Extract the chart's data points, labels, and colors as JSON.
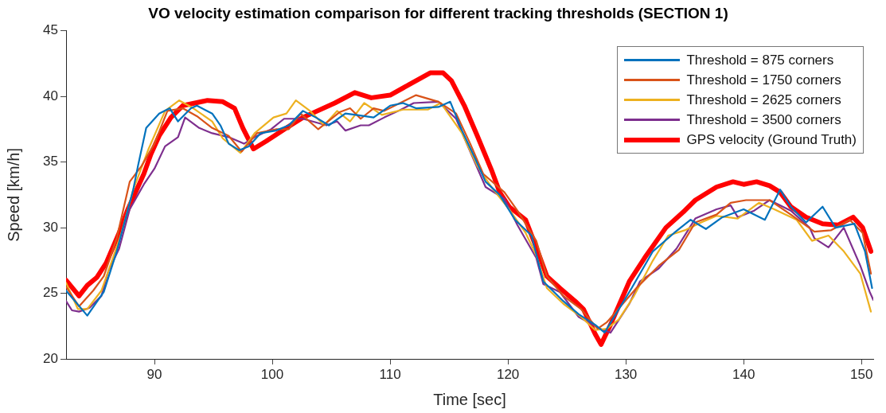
{
  "chart_data": {
    "type": "line",
    "title": "VO velocity estimation comparison for different tracking thresholds (SECTION 1)",
    "xlabel": "Time [sec]",
    "ylabel": "Speed [km/h]",
    "xlim": [
      82.5,
      151
    ],
    "xticks": [
      90,
      100,
      110,
      120,
      130,
      140,
      150
    ],
    "ylim": [
      20,
      45
    ],
    "yticks": [
      20,
      25,
      30,
      35,
      40,
      45
    ],
    "grid": false,
    "legend": "top right",
    "marker": "none",
    "line_style": "solid",
    "series": [
      {
        "name": "Threshold = 875 corners",
        "color": "#0072bd",
        "x": [
          82.5,
          84.3,
          85.7,
          86.8,
          88.2,
          88.6,
          89.3,
          90.4,
          91.3,
          92.0,
          93.1,
          93.6,
          94.9,
          95.6,
          96.3,
          97.2,
          98.0,
          99.0,
          100.3,
          101.4,
          102.6,
          103.7,
          104.8,
          106.2,
          107.1,
          108.6,
          110.0,
          111.1,
          112.2,
          114.1,
          115.1,
          116.1,
          117.2,
          118.1,
          119.3,
          120.6,
          122.0,
          123.0,
          124.7,
          126.0,
          127.4,
          128.2,
          130.5,
          132.3,
          134.1,
          135.5,
          136.8,
          138.2,
          140.0,
          141.8,
          143.1,
          144.0,
          145.3,
          146.7,
          147.8,
          149.4,
          150.3,
          150.9
        ],
        "values": [
          25.2,
          23.3,
          25.1,
          28.2,
          32.9,
          34.7,
          37.6,
          38.7,
          39.1,
          38.1,
          39.1,
          39.3,
          38.7,
          37.8,
          36.4,
          35.9,
          36.2,
          37.2,
          37.4,
          37.8,
          38.9,
          38.4,
          37.8,
          38.7,
          38.6,
          38.4,
          39.3,
          39.5,
          39.1,
          39.2,
          39.6,
          37.4,
          35.3,
          33.5,
          32.5,
          30.6,
          29.4,
          25.9,
          24.4,
          23.4,
          22.6,
          22.0,
          25.4,
          28.2,
          29.6,
          30.6,
          29.9,
          30.8,
          31.4,
          30.6,
          32.9,
          31.6,
          30.4,
          31.6,
          30.0,
          30.3,
          28.2,
          25.4
        ]
      },
      {
        "name": "Threshold = 1750 corners",
        "color": "#d95319",
        "x": [
          82.5,
          83.6,
          84.8,
          85.7,
          86.8,
          87.9,
          88.9,
          90.0,
          91.1,
          92.4,
          93.6,
          94.9,
          96.3,
          97.4,
          98.7,
          100.3,
          101.4,
          102.4,
          103.9,
          105.7,
          106.6,
          107.5,
          108.6,
          109.5,
          112.2,
          114.1,
          115.6,
          116.8,
          117.9,
          119.7,
          120.8,
          122.4,
          123.3,
          124.7,
          126.2,
          127.6,
          128.4,
          130.9,
          132.8,
          134.5,
          135.9,
          137.7,
          138.9,
          140.2,
          142.2,
          144.0,
          146.0,
          147.4,
          149.0,
          150.1,
          150.8
        ],
        "values": [
          25.5,
          24.0,
          25.2,
          26.3,
          29.2,
          33.5,
          34.7,
          36.4,
          38.9,
          39.1,
          38.5,
          37.6,
          37.0,
          35.8,
          37.2,
          37.5,
          37.5,
          38.7,
          37.5,
          38.8,
          39.1,
          38.3,
          39.1,
          38.9,
          40.1,
          39.6,
          38.7,
          36.4,
          34.1,
          32.7,
          31.3,
          29.0,
          26.3,
          24.8,
          23.8,
          22.3,
          22.8,
          25.4,
          27.1,
          28.3,
          30.4,
          31.0,
          31.9,
          32.1,
          32.1,
          31.0,
          29.7,
          29.8,
          30.6,
          29.6,
          26.5
        ]
      },
      {
        "name": "Threshold = 2625 corners",
        "color": "#edb120",
        "x": [
          82.5,
          83.5,
          84.3,
          85.5,
          86.4,
          87.2,
          88.2,
          89.5,
          90.9,
          92.1,
          93.3,
          94.9,
          95.8,
          97.3,
          98.5,
          100.1,
          101.2,
          102.0,
          103.2,
          104.4,
          105.5,
          106.6,
          107.8,
          109.3,
          111.1,
          113.2,
          114.3,
          116.1,
          117.4,
          118.6,
          120.1,
          121.5,
          122.4,
          123.3,
          124.7,
          126.2,
          127.4,
          128.4,
          129.4,
          130.7,
          132.3,
          133.6,
          135.0,
          136.4,
          137.7,
          139.5,
          141.3,
          142.6,
          144.5,
          145.8,
          147.2,
          148.5,
          149.9,
          150.8
        ],
        "values": [
          25.8,
          23.8,
          23.8,
          25.2,
          27.5,
          29.6,
          32.9,
          36.0,
          38.9,
          39.7,
          39.1,
          38.1,
          36.8,
          35.7,
          37.2,
          38.4,
          38.7,
          39.7,
          38.9,
          37.8,
          38.9,
          38.1,
          39.5,
          38.6,
          39.0,
          39.0,
          39.5,
          37.2,
          34.7,
          33.1,
          31.4,
          29.6,
          27.9,
          25.4,
          24.2,
          23.2,
          22.2,
          22.3,
          23.0,
          24.8,
          27.5,
          29.4,
          29.8,
          30.4,
          30.9,
          30.7,
          31.9,
          31.4,
          30.6,
          29.0,
          29.4,
          28.2,
          26.5,
          23.6
        ]
      },
      {
        "name": "Threshold = 3500 corners",
        "color": "#7e2f8e",
        "x": [
          82.5,
          83.0,
          83.6,
          84.5,
          85.5,
          86.1,
          87.0,
          87.9,
          89.1,
          90.0,
          90.9,
          92.0,
          92.6,
          93.8,
          94.9,
          96.3,
          97.6,
          98.5,
          99.9,
          101.0,
          102.6,
          104.6,
          105.5,
          106.2,
          107.5,
          108.2,
          109.5,
          110.7,
          112.0,
          114.1,
          115.6,
          116.6,
          118.1,
          119.7,
          120.8,
          122.4,
          123.0,
          124.4,
          126.0,
          127.8,
          128.7,
          130.3,
          131.2,
          132.8,
          134.3,
          135.9,
          137.7,
          138.9,
          139.5,
          140.9,
          142.2,
          144.0,
          145.6,
          146.0,
          147.2,
          148.5,
          149.9,
          150.7,
          151.0
        ],
        "values": [
          24.4,
          23.7,
          23.6,
          23.9,
          24.8,
          26.7,
          28.4,
          31.4,
          33.3,
          34.5,
          36.2,
          36.9,
          38.4,
          37.6,
          37.2,
          36.9,
          36.4,
          36.9,
          37.5,
          38.3,
          38.3,
          37.8,
          38.1,
          37.4,
          37.8,
          37.8,
          38.4,
          38.9,
          39.5,
          39.6,
          38.3,
          36.2,
          33.1,
          32.2,
          30.2,
          27.7,
          25.7,
          25.1,
          23.2,
          22.3,
          22.0,
          24.2,
          25.9,
          26.9,
          28.4,
          30.7,
          31.4,
          31.7,
          30.8,
          31.3,
          32.1,
          31.3,
          30.0,
          29.2,
          28.5,
          30.0,
          27.1,
          25.1,
          24.5
        ]
      },
      {
        "name": "GPS velocity (Ground Truth)",
        "color": "#ff0000",
        "x": [
          82.5,
          83.6,
          84.3,
          85.1,
          85.9,
          87.0,
          87.7,
          88.4,
          89.1,
          89.7,
          90.4,
          91.4,
          92.4,
          94.5,
          95.8,
          96.8,
          97.5,
          98.4,
          99.5,
          101.2,
          102.6,
          105.3,
          107.0,
          108.4,
          110.0,
          111.6,
          113.4,
          114.5,
          115.2,
          116.3,
          117.4,
          118.6,
          119.3,
          120.1,
          121.5,
          122.4,
          123.3,
          124.4,
          125.7,
          126.4,
          127.4,
          127.9,
          128.7,
          130.3,
          131.6,
          133.4,
          135.0,
          135.9,
          137.7,
          139.1,
          140.0,
          141.1,
          142.2,
          143.1,
          144.0,
          145.3,
          146.7,
          148.0,
          149.3,
          150.1,
          150.8
        ],
        "values": [
          26.0,
          24.8,
          25.6,
          26.2,
          27.3,
          29.6,
          31.3,
          32.7,
          34.1,
          35.6,
          37.0,
          38.4,
          39.3,
          39.7,
          39.6,
          39.1,
          37.6,
          36.0,
          36.6,
          37.6,
          38.4,
          39.5,
          40.3,
          39.9,
          40.1,
          40.9,
          41.8,
          41.8,
          41.2,
          39.3,
          37.0,
          34.4,
          32.7,
          31.6,
          30.6,
          28.5,
          26.3,
          25.4,
          24.4,
          23.8,
          21.9,
          21.1,
          22.6,
          25.9,
          27.7,
          30.0,
          31.3,
          32.1,
          33.1,
          33.5,
          33.3,
          33.5,
          33.2,
          32.7,
          31.6,
          30.8,
          30.3,
          30.2,
          30.8,
          30.0,
          28.2
        ]
      }
    ]
  }
}
